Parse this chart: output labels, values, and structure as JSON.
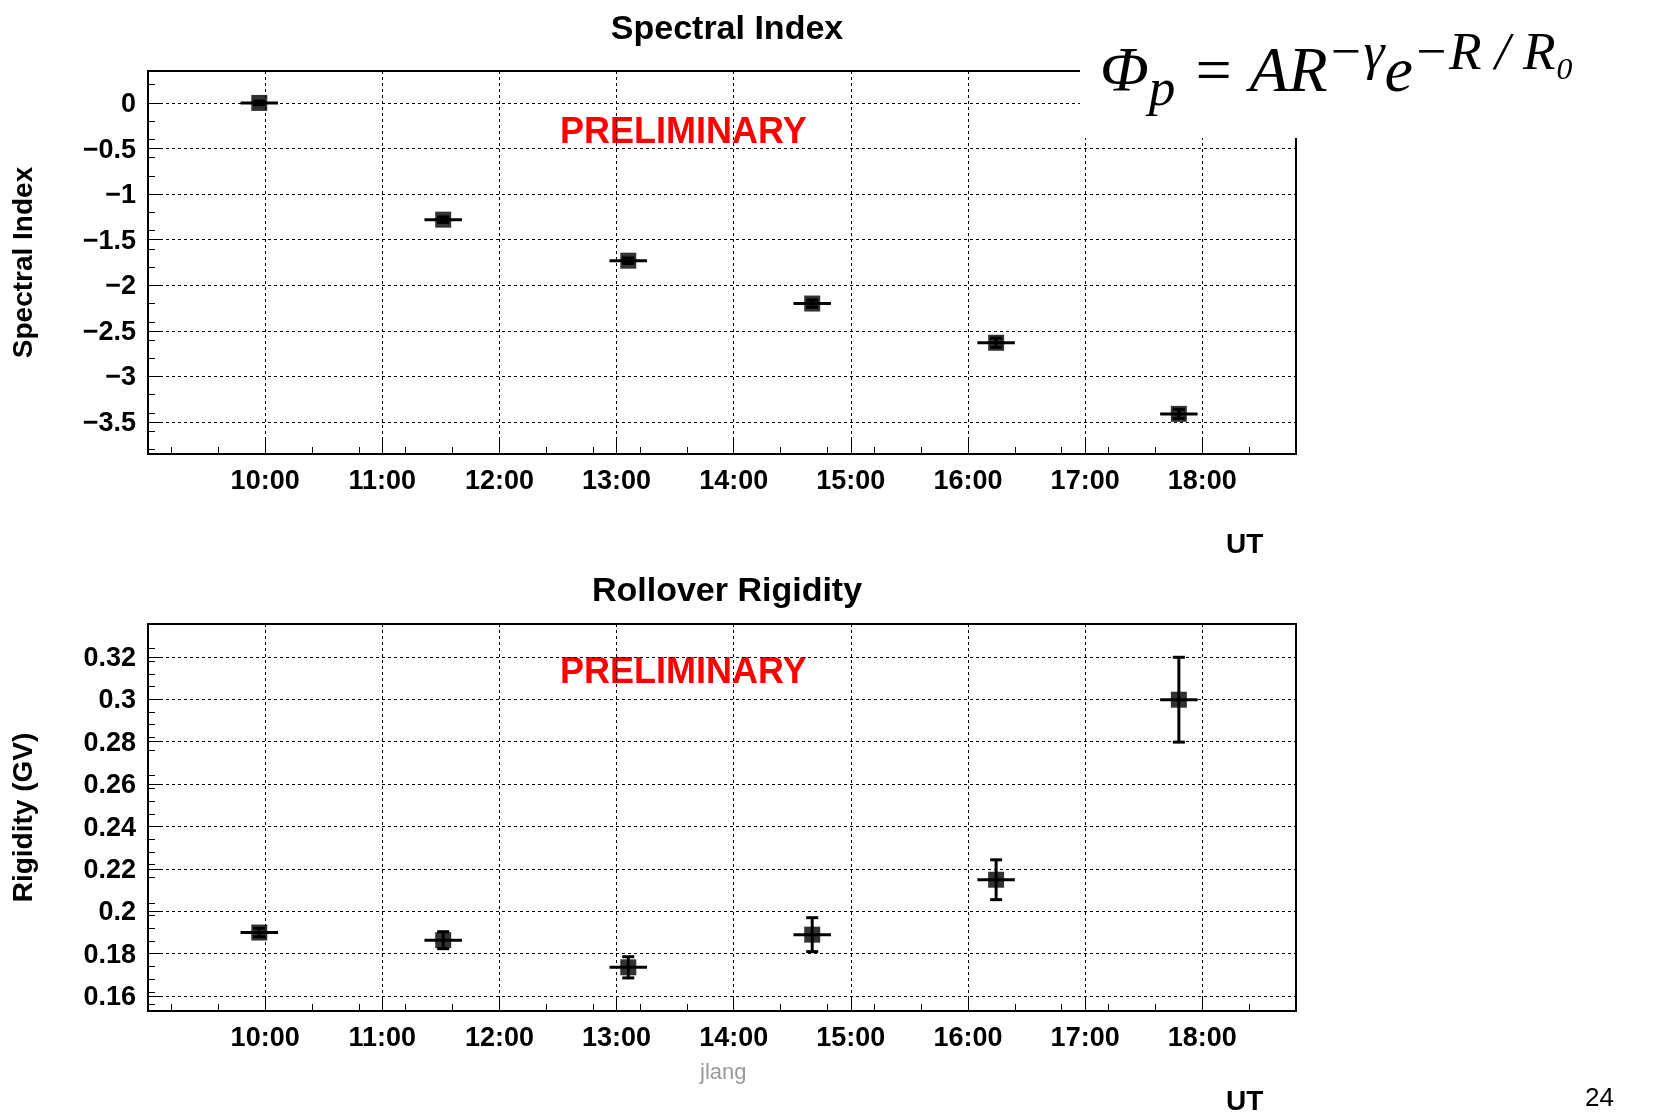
{
  "chart_data": [
    {
      "type": "scatter",
      "title": "Spectral Index",
      "xlabel": "UT",
      "ylabel": "Spectral Index",
      "marker": "square",
      "grid": true,
      "xlim": [
        9.0,
        18.8
      ],
      "xticks": [
        {
          "value": 10,
          "label": "10:00"
        },
        {
          "value": 11,
          "label": "11:00"
        },
        {
          "value": 12,
          "label": "12:00"
        },
        {
          "value": 13,
          "label": "13:00"
        },
        {
          "value": 14,
          "label": "14:00"
        },
        {
          "value": 15,
          "label": "15:00"
        },
        {
          "value": 16,
          "label": "16:00"
        },
        {
          "value": 17,
          "label": "17:00"
        },
        {
          "value": 18,
          "label": "18:00"
        }
      ],
      "ylim": [
        -3.85,
        0.35
      ],
      "yticks": [
        {
          "value": -3.5,
          "label": "−3.5"
        },
        {
          "value": -3,
          "label": "−3"
        },
        {
          "value": -2.5,
          "label": "−2.5"
        },
        {
          "value": -2,
          "label": "−2"
        },
        {
          "value": -1.5,
          "label": "−1.5"
        },
        {
          "value": -1,
          "label": "−1"
        },
        {
          "value": -0.5,
          "label": "−0.5"
        },
        0
      ],
      "series": [
        {
          "color": "#000000",
          "x": [
            9.95,
            11.52,
            13.1,
            14.67,
            16.24,
            17.8
          ],
          "values": [
            0.0,
            -1.28,
            -1.73,
            -2.2,
            -2.63,
            -3.41
          ],
          "errors": [
            0.02,
            0.03,
            0.03,
            0.04,
            0.05,
            0.05
          ],
          "xerrors": [
            0.16,
            0.16,
            0.16,
            0.16,
            0.16,
            0.16
          ]
        }
      ],
      "annotations": [
        "PRELIMINARY",
        "Φ$_{p}$ = AR$^{−γ}$e$^{−R / R₀}$"
      ]
    },
    {
      "type": "scatter",
      "title": "Rollover Rigidity",
      "xlabel": "UT",
      "ylabel": "Rigidity (GV)",
      "marker": "square",
      "grid": true,
      "xlim": [
        9.0,
        18.8
      ],
      "xticks": [
        {
          "value": 10,
          "label": "10:00"
        },
        {
          "value": 11,
          "label": "11:00"
        },
        {
          "value": 12,
          "label": "12:00"
        },
        {
          "value": 13,
          "label": "13:00"
        },
        {
          "value": 14,
          "label": "14:00"
        },
        {
          "value": 15,
          "label": "15:00"
        },
        {
          "value": 16,
          "label": "16:00"
        },
        {
          "value": 17,
          "label": "17:00"
        },
        {
          "value": 18,
          "label": "18:00"
        }
      ],
      "ylim": [
        0.153,
        0.3355
      ],
      "yticks": [
        0.16,
        0.18,
        0.2,
        0.22,
        0.24,
        0.26,
        0.28,
        0.3,
        0.32
      ],
      "series": [
        {
          "color": "#000000",
          "x": [
            9.95,
            11.52,
            13.1,
            14.67,
            16.24,
            17.8
          ],
          "values": [
            0.19,
            0.1864,
            0.1736,
            0.189,
            0.2149,
            0.2998
          ],
          "errors": [
            0.002,
            0.004,
            0.005,
            0.008,
            0.0094,
            0.02
          ],
          "xerrors": [
            0.16,
            0.16,
            0.16,
            0.16,
            0.16,
            0.16
          ]
        }
      ],
      "annotations": [
        "PRELIMINARY",
        "jlang",
        "24"
      ]
    }
  ]
}
